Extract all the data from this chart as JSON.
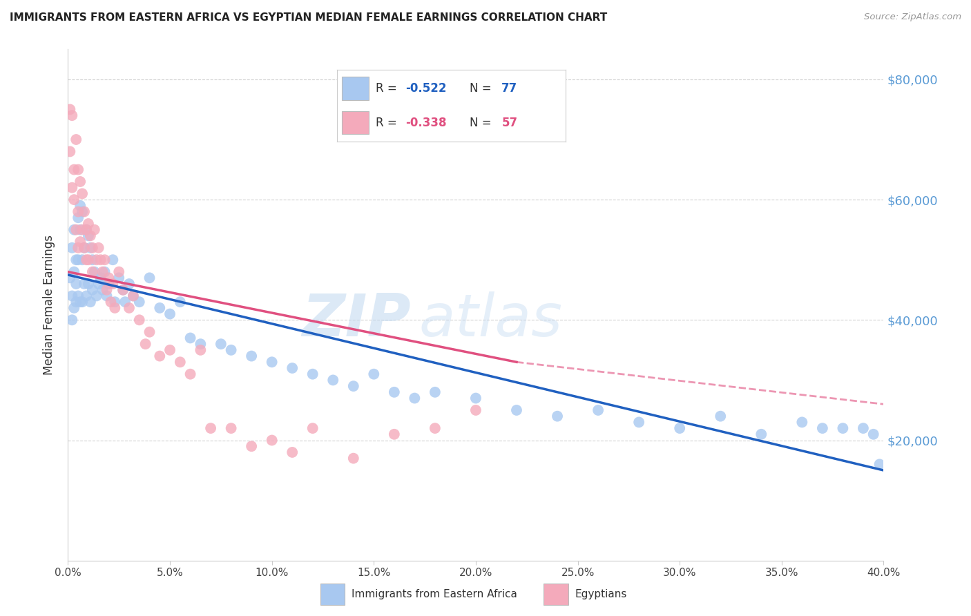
{
  "title": "IMMIGRANTS FROM EASTERN AFRICA VS EGYPTIAN MEDIAN FEMALE EARNINGS CORRELATION CHART",
  "source": "Source: ZipAtlas.com",
  "ylabel": "Median Female Earnings",
  "y_ticks": [
    20000,
    40000,
    60000,
    80000
  ],
  "y_tick_labels": [
    "$20,000",
    "$40,000",
    "$60,000",
    "$80,000"
  ],
  "x_min": 0.0,
  "x_max": 0.4,
  "y_min": 0,
  "y_max": 85000,
  "blue_R": -0.522,
  "blue_N": 77,
  "pink_R": -0.338,
  "pink_N": 57,
  "blue_color": "#A8C8F0",
  "pink_color": "#F4AABB",
  "blue_line_color": "#2060C0",
  "pink_line_color": "#E05080",
  "legend_blue_label": "Immigrants from Eastern Africa",
  "legend_pink_label": "Egyptians",
  "watermark_zip": "ZIP",
  "watermark_atlas": "atlas",
  "blue_scatter_x": [
    0.001,
    0.002,
    0.002,
    0.002,
    0.003,
    0.003,
    0.003,
    0.004,
    0.004,
    0.004,
    0.005,
    0.005,
    0.005,
    0.006,
    0.006,
    0.006,
    0.007,
    0.007,
    0.007,
    0.008,
    0.008,
    0.009,
    0.009,
    0.01,
    0.01,
    0.011,
    0.011,
    0.012,
    0.012,
    0.013,
    0.014,
    0.015,
    0.016,
    0.017,
    0.018,
    0.019,
    0.02,
    0.022,
    0.023,
    0.025,
    0.027,
    0.028,
    0.03,
    0.032,
    0.035,
    0.04,
    0.045,
    0.05,
    0.055,
    0.06,
    0.065,
    0.075,
    0.08,
    0.09,
    0.1,
    0.11,
    0.12,
    0.13,
    0.14,
    0.15,
    0.16,
    0.17,
    0.18,
    0.2,
    0.22,
    0.24,
    0.26,
    0.28,
    0.3,
    0.32,
    0.34,
    0.36,
    0.37,
    0.38,
    0.39,
    0.395,
    0.398
  ],
  "blue_scatter_y": [
    47000,
    52000,
    44000,
    40000,
    48000,
    55000,
    42000,
    50000,
    46000,
    43000,
    57000,
    50000,
    44000,
    59000,
    55000,
    43000,
    58000,
    50000,
    43000,
    52000,
    46000,
    55000,
    44000,
    54000,
    46000,
    52000,
    43000,
    50000,
    45000,
    48000,
    44000,
    46000,
    47000,
    45000,
    48000,
    44000,
    46000,
    50000,
    43000,
    47000,
    45000,
    43000,
    46000,
    44000,
    43000,
    47000,
    42000,
    41000,
    43000,
    37000,
    36000,
    36000,
    35000,
    34000,
    33000,
    32000,
    31000,
    30000,
    29000,
    31000,
    28000,
    27000,
    28000,
    27000,
    25000,
    24000,
    25000,
    23000,
    22000,
    24000,
    21000,
    23000,
    22000,
    22000,
    22000,
    21000,
    16000
  ],
  "pink_scatter_x": [
    0.001,
    0.001,
    0.002,
    0.002,
    0.003,
    0.003,
    0.004,
    0.004,
    0.005,
    0.005,
    0.005,
    0.006,
    0.006,
    0.007,
    0.007,
    0.008,
    0.008,
    0.009,
    0.009,
    0.01,
    0.01,
    0.011,
    0.012,
    0.012,
    0.013,
    0.014,
    0.015,
    0.016,
    0.017,
    0.018,
    0.019,
    0.02,
    0.021,
    0.022,
    0.023,
    0.025,
    0.027,
    0.03,
    0.032,
    0.035,
    0.038,
    0.04,
    0.045,
    0.05,
    0.055,
    0.06,
    0.065,
    0.07,
    0.08,
    0.09,
    0.1,
    0.11,
    0.12,
    0.14,
    0.16,
    0.18,
    0.2
  ],
  "pink_scatter_y": [
    75000,
    68000,
    74000,
    62000,
    65000,
    60000,
    70000,
    55000,
    65000,
    58000,
    52000,
    63000,
    53000,
    61000,
    55000,
    58000,
    52000,
    55000,
    50000,
    56000,
    50000,
    54000,
    52000,
    48000,
    55000,
    50000,
    52000,
    50000,
    48000,
    50000,
    45000,
    47000,
    43000,
    46000,
    42000,
    48000,
    45000,
    42000,
    44000,
    40000,
    36000,
    38000,
    34000,
    35000,
    33000,
    31000,
    35000,
    22000,
    22000,
    19000,
    20000,
    18000,
    22000,
    17000,
    21000,
    22000,
    25000
  ]
}
